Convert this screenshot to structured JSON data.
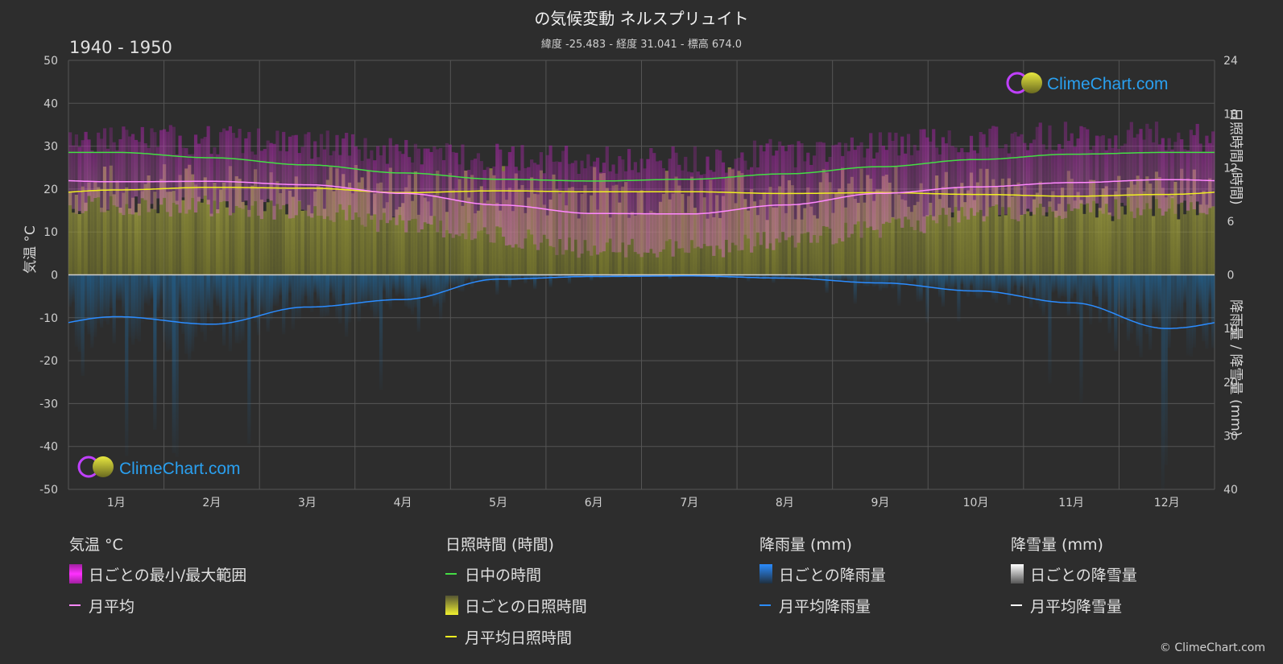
{
  "header": {
    "title": "の気候変動 ネルスプリュイト",
    "subtitle": "緯度 -25.483 - 経度 31.041 - 標高 674.0",
    "period": "1940 - 1950"
  },
  "watermark": {
    "text": "ClimeChart.com"
  },
  "copyright": "© ClimeChart.com",
  "legend": {
    "temperature": {
      "header": "気温 °C",
      "range": "日ごとの最小/最大範囲",
      "monthly": "月平均"
    },
    "sunshine": {
      "header": "日照時間 (時間)",
      "daylight": "日中の時間",
      "daily": "日ごとの日照時間",
      "monthly": "月平均日照時間"
    },
    "rain": {
      "header": "降雨量 (mm)",
      "daily": "日ごとの降雨量",
      "monthly": "月平均降雨量"
    },
    "snow": {
      "header": "降雪量 (mm)",
      "daily": "日ごとの降雪量",
      "monthly": "月平均降雪量"
    }
  },
  "colors": {
    "background": "#2d2d2d",
    "temp_range": "#d020c0",
    "temp_avg": "#ff88ff",
    "daylight": "#44dd44",
    "sunshine_fill": "#9a9a38",
    "sunshine_avg": "#f0f020",
    "rain_fill": "#1f6ea8",
    "rain_avg": "#2b8cff",
    "snow": "#ffffff"
  },
  "chart_data": {
    "type": "line",
    "categories": [
      "1月",
      "2月",
      "3月",
      "4月",
      "5月",
      "6月",
      "7月",
      "8月",
      "9月",
      "10月",
      "11月",
      "12月"
    ],
    "axes": {
      "left": {
        "label": "気温 °C",
        "ylim": [
          -50,
          50
        ],
        "ticks": [
          50,
          40,
          30,
          20,
          10,
          0,
          -10,
          -20,
          -30,
          -40,
          -50
        ]
      },
      "right_top": {
        "label": "日照時間 (時間)",
        "ylim": [
          0,
          24
        ],
        "ticks": [
          24,
          18,
          12,
          6,
          0
        ]
      },
      "right_bottom": {
        "label": "降雨量 / 降雪量 (mm)",
        "ylim": [
          0,
          40
        ],
        "ticks": [
          0,
          10,
          20,
          30,
          40
        ]
      }
    },
    "grid": true,
    "series": [
      {
        "name": "日中の時間",
        "axis": "right_top",
        "values": [
          13.7,
          13.1,
          12.3,
          11.4,
          10.7,
          10.5,
          10.7,
          11.3,
          12.1,
          12.9,
          13.5,
          13.7
        ]
      },
      {
        "name": "月平均日照時間",
        "axis": "right_top",
        "values": [
          9.5,
          9.8,
          9.7,
          9.2,
          9.4,
          9.3,
          9.3,
          9.1,
          9.2,
          9.0,
          8.8,
          9.0
        ]
      },
      {
        "name": "月平均",
        "axis": "left",
        "values": [
          21.7,
          21.8,
          21.0,
          19.0,
          16.3,
          14.3,
          14.2,
          16.3,
          19.0,
          20.5,
          21.5,
          22.2
        ]
      },
      {
        "name": "月平均降雨量",
        "axis": "right_bottom",
        "values": [
          7.8,
          9.2,
          6.0,
          4.6,
          0.8,
          0.3,
          0.2,
          0.6,
          1.5,
          3.0,
          5.2,
          10.0
        ]
      },
      {
        "name": "月平均降雪量",
        "axis": "right_bottom",
        "values": [
          0,
          0,
          0,
          0,
          0,
          0,
          0,
          0,
          0,
          0,
          0,
          0
        ]
      }
    ],
    "temp_range_approx": {
      "max": [
        28,
        28,
        27,
        25,
        24,
        23,
        23,
        25,
        27,
        28,
        29,
        29
      ],
      "min": [
        16,
        16,
        15,
        12,
        9,
        6,
        6,
        8,
        11,
        14,
        15,
        16
      ]
    }
  }
}
